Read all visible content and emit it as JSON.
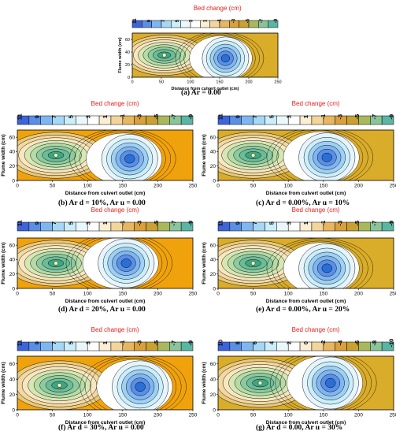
{
  "colors": {
    "bar": [
      "#3f64d9",
      "#5b8fe6",
      "#7fb6ef",
      "#a6d8f5",
      "#cbeefa",
      "#eaf8fb",
      "#ffffff",
      "#fbeed2",
      "#f1d59a",
      "#e6b661",
      "#d9a13c",
      "#c9a032",
      "#a9b85c",
      "#8cc499",
      "#5bb5a3"
    ],
    "deep_scour": "#2a6fd6",
    "scour": "#9fd0f3",
    "deep_deposit": "#3fa684",
    "deposit": "#b6dba6",
    "background_yellow": "#d9ac2a",
    "background_orange": "#f0a20d",
    "contour_line": "#000000",
    "title_red": "#e0201b"
  },
  "chart_data": [
    {
      "id": "a",
      "type": "heatmap",
      "colorbar_title": "Bed change (cm)",
      "colorbar_ticks": [
        "11",
        "9",
        "7",
        "5",
        "3",
        "1",
        "-1",
        "-3",
        "-5",
        "-7",
        "-9"
      ],
      "xlabel": "Distance from culvert outlet (cm)",
      "ylabel": "Flume width (cm)",
      "xlim": [
        0,
        250
      ],
      "ylim": [
        0,
        70
      ],
      "xticks": [
        "0",
        "50",
        "100",
        "150",
        "200",
        "250"
      ],
      "yticks": [
        "0",
        "20",
        "40",
        "60"
      ],
      "caption": "(a)  Ar = 0.00",
      "deposit_center": [
        55,
        35
      ],
      "scour_center": [
        160,
        30
      ],
      "background": "yellow"
    },
    {
      "id": "b",
      "type": "heatmap",
      "colorbar_title": "Bed change (cm)",
      "colorbar_ticks": [
        "11",
        "9",
        "7",
        "5",
        "3",
        "1",
        "-1",
        "-3",
        "-5",
        "-7",
        "-9"
      ],
      "xlabel": "Distance from culvert outlet (cm)",
      "ylabel": "Flume width (cm)",
      "xlim": [
        0,
        250
      ],
      "ylim": [
        0,
        70
      ],
      "xticks": [
        "0",
        "50",
        "100",
        "150",
        "200",
        "250"
      ],
      "yticks": [
        "0",
        "20",
        "40",
        "60"
      ],
      "caption": "(b)  Ar d = 10%, Ar u = 0.00",
      "deposit_center": [
        55,
        35
      ],
      "scour_center": [
        160,
        30
      ],
      "background": "orange"
    },
    {
      "id": "c",
      "type": "heatmap",
      "colorbar_title": "Bed change (cm)",
      "colorbar_ticks": [
        "11",
        "9",
        "7",
        "5",
        "3",
        "1",
        "-1",
        "-3",
        "-5",
        "-7",
        "-9"
      ],
      "xlabel": "Distance from culvert outlet (cm)",
      "ylabel": "Flume width (cm)",
      "xlim": [
        0,
        250
      ],
      "ylim": [
        0,
        70
      ],
      "xticks": [
        "0",
        "50",
        "100",
        "150",
        "200",
        "250"
      ],
      "yticks": [
        "0",
        "20",
        "40",
        "60"
      ],
      "caption": "(c)  Ar d = 0.00%, Ar u = 10%",
      "deposit_center": [
        50,
        35
      ],
      "scour_center": [
        155,
        32
      ],
      "background": "yellow"
    },
    {
      "id": "d",
      "type": "heatmap",
      "colorbar_title": "Bed change (cm)",
      "colorbar_ticks": [
        "11",
        "9",
        "7",
        "5",
        "3",
        "1",
        "-1",
        "-3",
        "-5",
        "-7",
        "-9"
      ],
      "xlabel": "Distance from culvert outlet (cm)",
      "ylabel": "Flume width (cm)",
      "xlim": [
        0,
        250
      ],
      "ylim": [
        0,
        70
      ],
      "xticks": [
        "0",
        "50",
        "100",
        "150",
        "200",
        "250"
      ],
      "yticks": [
        "0",
        "20",
        "40",
        "60"
      ],
      "caption": "(d)  Ar d = 20%, Ar u = 0.00",
      "deposit_center": [
        55,
        35
      ],
      "scour_center": [
        155,
        35
      ],
      "background": "orange"
    },
    {
      "id": "e",
      "type": "heatmap",
      "colorbar_title": "Bed change (cm)",
      "colorbar_ticks": [
        "11",
        "9",
        "7",
        "5",
        "3",
        "1",
        "-1",
        "-3",
        "-5",
        "-7",
        "-9"
      ],
      "xlabel": "Distance from culvert outlet (cm)",
      "ylabel": "Flume width (cm)",
      "xlim": [
        0,
        250
      ],
      "ylim": [
        0,
        70
      ],
      "xticks": [
        "0",
        "50",
        "100",
        "150",
        "200",
        "250"
      ],
      "yticks": [
        "0",
        "20",
        "40",
        "60"
      ],
      "caption": "(e)  Ar d = 0.00%, Ar u = 20%",
      "deposit_center": [
        50,
        35
      ],
      "scour_center": [
        155,
        28
      ],
      "background": "yellow"
    },
    {
      "id": "f",
      "type": "heatmap",
      "colorbar_title": "Bed change (cm)",
      "colorbar_ticks": [
        "11",
        "9",
        "7",
        "5",
        "3",
        "1",
        "-1",
        "-3",
        "-5",
        "-7",
        "-9"
      ],
      "xlabel": "Distance from culvert outlet (cm)",
      "ylabel": "Flume width (cm)",
      "xlim": [
        0,
        250
      ],
      "ylim": [
        0,
        70
      ],
      "xticks": [
        "0",
        "50",
        "100",
        "150",
        "200",
        "250"
      ],
      "yticks": [
        "0",
        "20",
        "40",
        "60"
      ],
      "caption": "(f)  Ar d = 30%, Ar u = 0.00",
      "deposit_center": [
        60,
        32
      ],
      "scour_center": [
        175,
        30
      ],
      "background": "orange"
    },
    {
      "id": "g",
      "type": "heatmap",
      "colorbar_title": "Bed change (cm)",
      "colorbar_ticks": [
        "10",
        "8",
        "6",
        "4",
        "2",
        "0",
        "-2",
        "-4",
        "-6",
        "-8",
        "-10"
      ],
      "xlabel": "Distance from culvert outlet (cm)",
      "ylabel": "Flume width (cm)",
      "xlim": [
        0,
        250
      ],
      "ylim": [
        0,
        70
      ],
      "xticks": [
        "0",
        "50",
        "100",
        "150",
        "200",
        "250"
      ],
      "yticks": [
        "0",
        "20",
        "40",
        "60"
      ],
      "caption": "(g)  Ar d = 0.00, Ar u = 30%",
      "deposit_center": [
        60,
        35
      ],
      "scour_center": [
        160,
        35
      ],
      "background": "yellow"
    }
  ]
}
